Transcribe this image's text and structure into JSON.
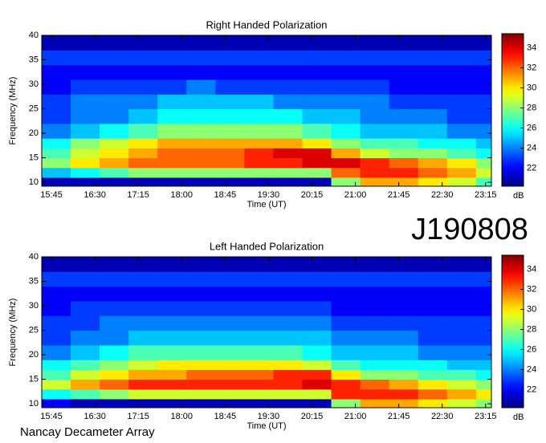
{
  "title": "J190808",
  "footer": "Nancay Decameter Array",
  "chart_data": [
    {
      "type": "heatmap",
      "title": "Right Handed Polarization",
      "xlabel": "Time (UT)",
      "ylabel": "Frequency (MHz)",
      "colormap": "jet",
      "x_bins": [
        935,
        965,
        995,
        1025,
        1055,
        1085,
        1115,
        1145,
        1175,
        1205,
        1235,
        1265,
        1295,
        1325,
        1355,
        1385,
        1401
      ],
      "y_bins": [
        9.2,
        11,
        13,
        15,
        17,
        19,
        22,
        25,
        28,
        31,
        34,
        37,
        40
      ],
      "z": [
        [
          21,
          21,
          21,
          21,
          21,
          21,
          21,
          21,
          21,
          21,
          28,
          31,
          31,
          30,
          29,
          27
        ],
        [
          25,
          26,
          27,
          28,
          28,
          28,
          28,
          28,
          28,
          28,
          32,
          33,
          33,
          32,
          31,
          29
        ],
        [
          28,
          30,
          31,
          32,
          32,
          32,
          32,
          33,
          33,
          34,
          34,
          33,
          32,
          31,
          30,
          28
        ],
        [
          27,
          29,
          30,
          31,
          32,
          32,
          32,
          33,
          34,
          34,
          31,
          29,
          28,
          28,
          27,
          26
        ],
        [
          26,
          28,
          29,
          30,
          31,
          31,
          31,
          31,
          31,
          30,
          28,
          27,
          27,
          26,
          26,
          25
        ],
        [
          24,
          25,
          26,
          27,
          28,
          28,
          28,
          28,
          28,
          27,
          26,
          25,
          25,
          25,
          24,
          24
        ],
        [
          23,
          24,
          24,
          25,
          26,
          26,
          26,
          26,
          26,
          25,
          25,
          24,
          24,
          24,
          23,
          23
        ],
        [
          23,
          24,
          24,
          24,
          25,
          25,
          25,
          25,
          24,
          24,
          24,
          24,
          23,
          23,
          23,
          23
        ],
        [
          22,
          23,
          23,
          23,
          23,
          24,
          23,
          23,
          23,
          23,
          23,
          23,
          22,
          22,
          22,
          22
        ],
        [
          22,
          22,
          22,
          22,
          22,
          22,
          22,
          22,
          22,
          22,
          22,
          22,
          22,
          22,
          22,
          22
        ],
        [
          23,
          23,
          23,
          23,
          23,
          23,
          23,
          23,
          23,
          23,
          23,
          23,
          23,
          23,
          23,
          23
        ],
        [
          21,
          21,
          21,
          21,
          21,
          21,
          21,
          21,
          21,
          21,
          21,
          21,
          21,
          21,
          21,
          21
        ]
      ],
      "xlim": [
        935,
        1401
      ],
      "ylim": [
        9.2,
        40
      ],
      "xticks": [
        {
          "value": 945,
          "label": "15:45"
        },
        {
          "value": 990,
          "label": "16:30"
        },
        {
          "value": 1035,
          "label": "17:15"
        },
        {
          "value": 1080,
          "label": "18:00"
        },
        {
          "value": 1125,
          "label": "18:45"
        },
        {
          "value": 1170,
          "label": "19:30"
        },
        {
          "value": 1215,
          "label": "20:15"
        },
        {
          "value": 1260,
          "label": "21:00"
        },
        {
          "value": 1305,
          "label": "21:45"
        },
        {
          "value": 1350,
          "label": "22:30"
        },
        {
          "value": 1395,
          "label": "23:15"
        }
      ],
      "yticks": [
        10,
        15,
        20,
        25,
        30,
        35,
        40
      ],
      "clim": [
        20.2,
        35.4
      ],
      "cticks": [
        22,
        24,
        26,
        28,
        30,
        32,
        34
      ],
      "clabel": "dB"
    },
    {
      "type": "heatmap",
      "title": "Left Handed Polarization",
      "xlabel": "Time (UT)",
      "ylabel": "Frequency (MHz)",
      "colormap": "jet",
      "x_bins": [
        935,
        965,
        995,
        1025,
        1055,
        1085,
        1115,
        1145,
        1175,
        1205,
        1235,
        1265,
        1295,
        1325,
        1355,
        1385,
        1401
      ],
      "y_bins": [
        9.2,
        11,
        13,
        15,
        17,
        19,
        22,
        25,
        28,
        31,
        34,
        37,
        40
      ],
      "z": [
        [
          22,
          21,
          21,
          21,
          21,
          21,
          21,
          21,
          21,
          21,
          28,
          31,
          31,
          30,
          29,
          28
        ],
        [
          26,
          27,
          28,
          29,
          29,
          29,
          29,
          29,
          29,
          29,
          33,
          33,
          33,
          32,
          31,
          30
        ],
        [
          29,
          31,
          32,
          33,
          33,
          33,
          33,
          33,
          33,
          34,
          33,
          32,
          31,
          30,
          29,
          28
        ],
        [
          27,
          29,
          30,
          31,
          31,
          32,
          32,
          32,
          33,
          33,
          30,
          28,
          28,
          27,
          27,
          26
        ],
        [
          26,
          27,
          28,
          29,
          30,
          30,
          30,
          30,
          30,
          29,
          27,
          26,
          26,
          26,
          25,
          25
        ],
        [
          24,
          25,
          26,
          27,
          27,
          27,
          27,
          27,
          27,
          26,
          25,
          25,
          25,
          24,
          24,
          24
        ],
        [
          23,
          24,
          24,
          25,
          25,
          25,
          25,
          25,
          25,
          25,
          24,
          24,
          24,
          23,
          23,
          23
        ],
        [
          23,
          23,
          24,
          24,
          24,
          24,
          24,
          24,
          24,
          24,
          23,
          23,
          23,
          23,
          23,
          23
        ],
        [
          22,
          23,
          23,
          23,
          23,
          23,
          23,
          23,
          23,
          23,
          22,
          22,
          22,
          22,
          22,
          22
        ],
        [
          22,
          22,
          22,
          22,
          22,
          22,
          22,
          22,
          22,
          22,
          22,
          22,
          22,
          22,
          22,
          22
        ],
        [
          23,
          23,
          23,
          23,
          23,
          23,
          23,
          23,
          23,
          23,
          23,
          23,
          23,
          23,
          23,
          23
        ],
        [
          21,
          21,
          21,
          21,
          21,
          21,
          21,
          21,
          21,
          21,
          21,
          21,
          21,
          21,
          21,
          21
        ]
      ],
      "xlim": [
        935,
        1401
      ],
      "ylim": [
        9.2,
        40
      ],
      "xticks": [
        {
          "value": 945,
          "label": "15:45"
        },
        {
          "value": 990,
          "label": "16:30"
        },
        {
          "value": 1035,
          "label": "17:15"
        },
        {
          "value": 1080,
          "label": "18:00"
        },
        {
          "value": 1125,
          "label": "18:45"
        },
        {
          "value": 1170,
          "label": "19:30"
        },
        {
          "value": 1215,
          "label": "20:15"
        },
        {
          "value": 1260,
          "label": "21:00"
        },
        {
          "value": 1305,
          "label": "21:45"
        },
        {
          "value": 1350,
          "label": "22:30"
        },
        {
          "value": 1395,
          "label": "23:15"
        }
      ],
      "yticks": [
        10,
        15,
        20,
        25,
        30,
        35,
        40
      ],
      "clim": [
        20.2,
        35.4
      ],
      "cticks": [
        22,
        24,
        26,
        28,
        30,
        32,
        34
      ],
      "clabel": "dB"
    }
  ]
}
